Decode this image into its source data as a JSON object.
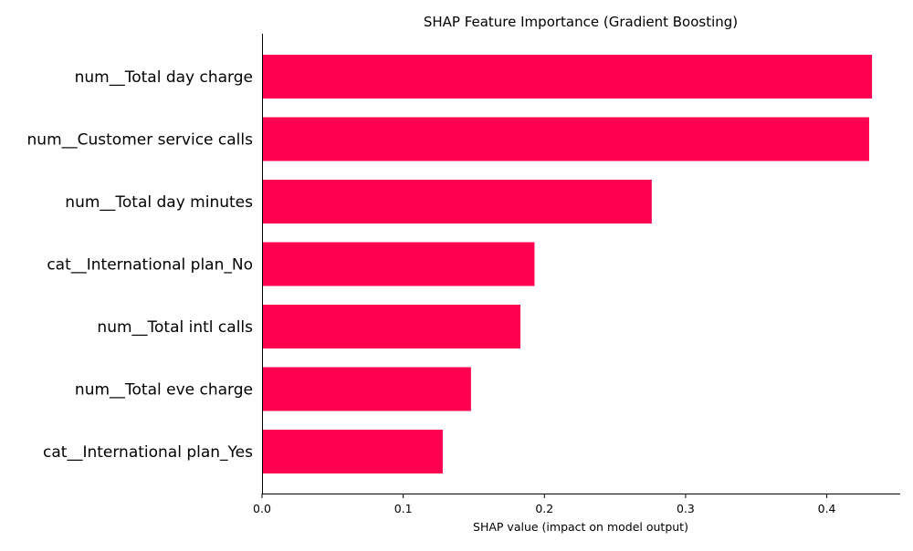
{
  "chart_data": {
    "type": "bar",
    "orientation": "horizontal",
    "title": "SHAP Feature Importance (Gradient Boosting)",
    "xlabel": "SHAP value (impact on model output)",
    "ylabel": "",
    "categories": [
      "num__Total day charge",
      "num__Customer service calls",
      "num__Total day minutes",
      "cat__International plan_No",
      "num__Total intl calls",
      "num__Total eve charge",
      "cat__International plan_Yes"
    ],
    "values": [
      0.432,
      0.43,
      0.276,
      0.193,
      0.183,
      0.148,
      0.128
    ],
    "xlim": [
      0,
      0.452
    ],
    "xticks": [
      {
        "value": 0.0,
        "label": "0.0"
      },
      {
        "value": 0.1,
        "label": "0.1"
      },
      {
        "value": 0.2,
        "label": "0.2"
      },
      {
        "value": 0.3,
        "label": "0.3"
      },
      {
        "value": 0.4,
        "label": "0.4"
      }
    ],
    "bar_color": "#ff0051",
    "grid": false,
    "legend": "none"
  }
}
